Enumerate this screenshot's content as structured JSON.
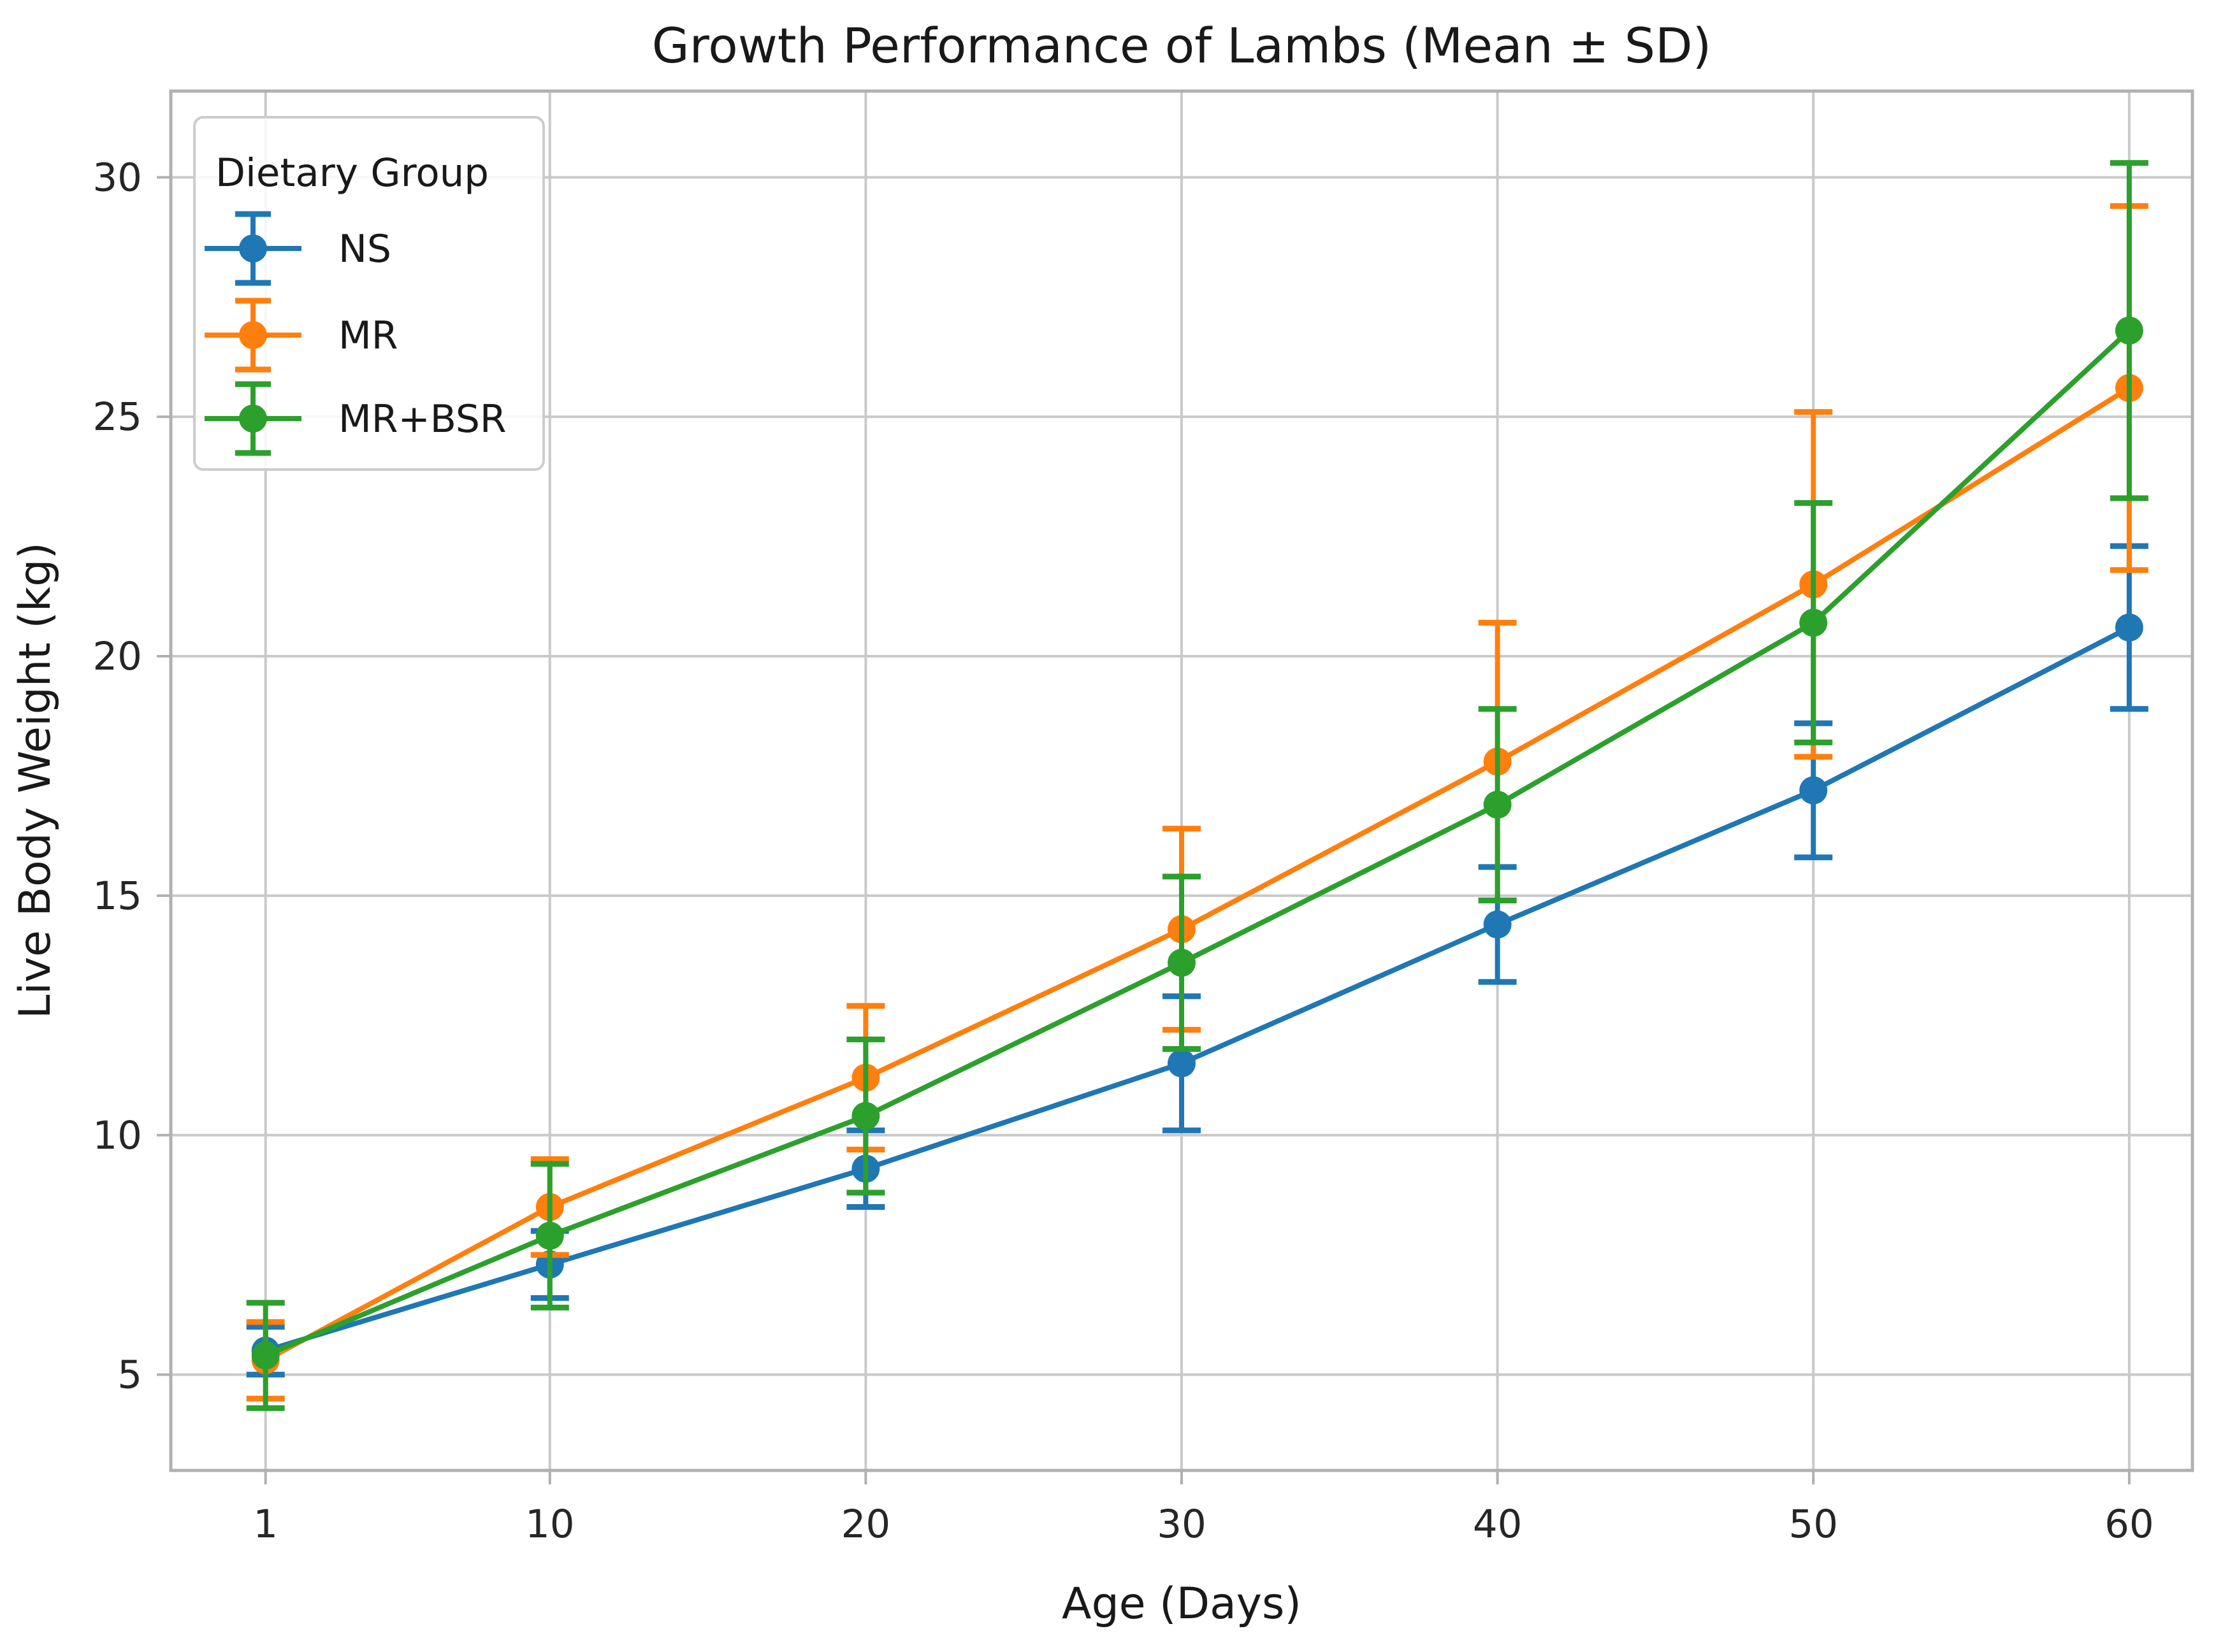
{
  "figure": {
    "background": "#ffffff",
    "kind": "matplotlib errorbar line chart"
  },
  "chart_data": {
    "type": "line",
    "title": "Growth Performance of Lambs (Mean ± SD)",
    "xlabel": "Age (Days)",
    "ylabel": "Live Body Weight (kg)",
    "x": [
      1,
      10,
      20,
      30,
      40,
      50,
      60
    ],
    "xtick_labels": [
      "1",
      "10",
      "20",
      "30",
      "40",
      "50",
      "60"
    ],
    "yticks": [
      5,
      10,
      15,
      20,
      25,
      30
    ],
    "ytick_labels": [
      "5",
      "10",
      "15",
      "20",
      "25",
      "30"
    ],
    "xlim": [
      -2,
      62
    ],
    "ylim": [
      3,
      31.8
    ],
    "grid": true,
    "error_bars": "mean ± standard deviation with caps",
    "legend": {
      "title": "Dietary Group",
      "position": "upper-left",
      "entries": [
        "NS",
        "MR",
        "MR+BSR"
      ]
    },
    "series": [
      {
        "name": "NS",
        "color": "#1f77b4",
        "means": [
          5.5,
          7.3,
          9.3,
          11.5,
          14.4,
          17.2,
          20.6
        ],
        "sd": [
          0.5,
          0.7,
          0.8,
          1.4,
          1.2,
          1.4,
          1.7
        ]
      },
      {
        "name": "MR",
        "color": "#ff7f0e",
        "means": [
          5.3,
          8.5,
          11.2,
          14.3,
          17.8,
          21.5,
          25.6
        ],
        "sd": [
          0.8,
          1.0,
          1.5,
          2.1,
          2.9,
          3.6,
          3.8
        ]
      },
      {
        "name": "MR+BSR",
        "color": "#2ca02c",
        "means": [
          5.4,
          7.9,
          10.4,
          13.6,
          16.9,
          20.7,
          26.8
        ],
        "sd": [
          1.1,
          1.5,
          1.6,
          1.8,
          2.0,
          2.5,
          3.5
        ]
      }
    ],
    "style": {
      "grid_color": "#c9c9c9",
      "spine_color": "#b0b0b0",
      "tick_color": "#b0b0b0",
      "text_color": "#191919",
      "line_width": 8,
      "marker_radius": 22,
      "cap_half_width": 30,
      "legend_border": "#cccccc"
    },
    "layout": {
      "plot_left": 268,
      "plot_right": 3440,
      "plot_top": 143,
      "plot_bottom": 2308
    }
  }
}
